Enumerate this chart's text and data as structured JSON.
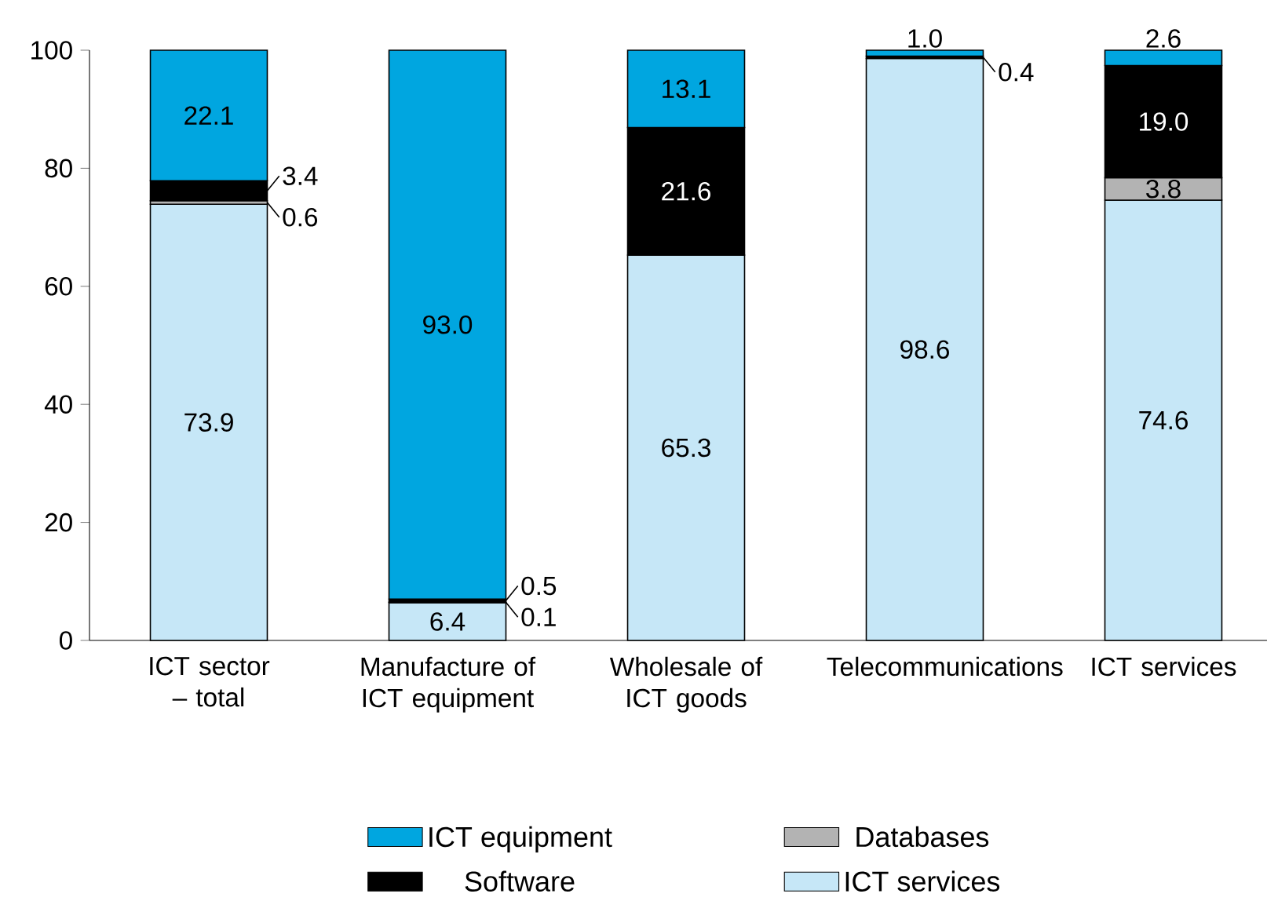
{
  "chart_data": {
    "type": "bar",
    "stacked": true,
    "categories": [
      "ICT sector – total",
      "Manufacture of ICT equipment",
      "Wholesale of ICT goods",
      "Telecommunications",
      "ICT services"
    ],
    "series": [
      {
        "name": "ICT services",
        "color": "#c6e7f7",
        "values": [
          73.9,
          6.4,
          65.3,
          98.6,
          74.6
        ],
        "value_labels": [
          "73.9",
          "6.4",
          "65.3",
          "98.6",
          "74.6"
        ]
      },
      {
        "name": "Databases",
        "color": "#b3b3b3",
        "values": [
          0.6,
          0.1,
          null,
          null,
          3.8
        ],
        "value_labels": [
          "0.6",
          "0.1",
          null,
          null,
          "3.8"
        ]
      },
      {
        "name": "Software",
        "color": "#000000",
        "values": [
          3.4,
          0.5,
          21.6,
          0.4,
          19.0
        ],
        "value_labels": [
          "3.4",
          "0.5",
          "21.6",
          "0.4",
          "19.0"
        ]
      },
      {
        "name": "ICT equipment",
        "color": "#00a6e0",
        "values": [
          22.1,
          93.0,
          13.1,
          1.0,
          2.6
        ],
        "value_labels": [
          "22.1",
          "93.0",
          "13.1",
          "1.0",
          "2.6"
        ]
      }
    ],
    "ylim": [
      0,
      100
    ],
    "yticks": [
      0,
      20,
      40,
      60,
      80,
      100
    ],
    "grid": false,
    "legend": "bottom"
  }
}
